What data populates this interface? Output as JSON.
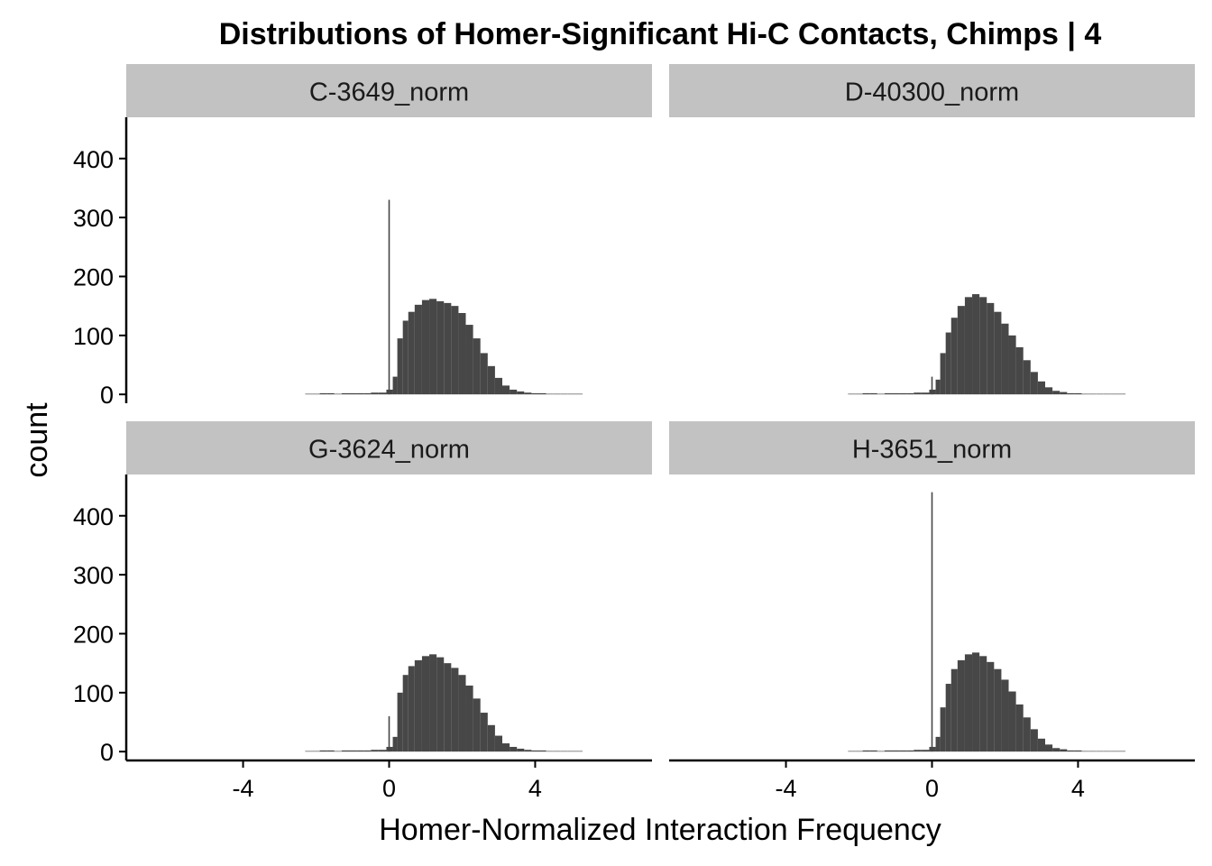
{
  "chart_data": {
    "type": "bar",
    "title": "Distributions of Homer-Significant Hi-C Contacts, Chimps | 4",
    "xlabel": "Homer-Normalized Interaction Frequency",
    "ylabel": "count",
    "xlim": [
      -7.2,
      7.2
    ],
    "ylim": [
      -15,
      470
    ],
    "x_ticks": [
      -4,
      0,
      4
    ],
    "x_tick_labels": [
      "-4",
      "0",
      "4"
    ],
    "y_ticks": [
      0,
      100,
      200,
      300,
      400
    ],
    "y_tick_labels": [
      "0",
      "100",
      "200",
      "300",
      "400"
    ],
    "grid": false,
    "bar_color": "#474747",
    "strip_color": "#c2c2c2",
    "facets": [
      {
        "label": "C-3649_norm",
        "spike": {
          "x": 0.0,
          "count": 330
        },
        "series": {
          "x": [
            -2.2,
            -2.0,
            -1.8,
            -1.6,
            -1.4,
            -1.2,
            -1.0,
            -0.8,
            -0.6,
            -0.4,
            -0.2,
            0.05,
            0.15,
            0.3,
            0.45,
            0.6,
            0.8,
            1.0,
            1.2,
            1.4,
            1.6,
            1.8,
            2.0,
            2.2,
            2.4,
            2.6,
            2.8,
            3.0,
            3.2,
            3.4,
            3.6,
            3.8,
            4.0,
            4.2,
            4.4,
            4.6,
            4.8,
            5.0,
            5.2
          ],
          "counts": [
            1,
            1,
            2,
            2,
            1,
            2,
            2,
            2,
            2,
            3,
            3,
            8,
            30,
            95,
            125,
            140,
            152,
            160,
            162,
            158,
            155,
            150,
            138,
            118,
            95,
            70,
            48,
            28,
            15,
            8,
            5,
            3,
            2,
            2,
            1,
            1,
            1,
            1,
            1
          ]
        }
      },
      {
        "label": "D-40300_norm",
        "spike": {
          "x": 0.0,
          "count": 30
        },
        "series": {
          "x": [
            -2.2,
            -2.0,
            -1.8,
            -1.6,
            -1.4,
            -1.2,
            -1.0,
            -0.8,
            -0.6,
            -0.4,
            -0.2,
            0.05,
            0.15,
            0.3,
            0.45,
            0.6,
            0.8,
            1.0,
            1.2,
            1.4,
            1.6,
            1.8,
            2.0,
            2.2,
            2.4,
            2.6,
            2.8,
            3.0,
            3.2,
            3.4,
            3.6,
            3.8,
            4.0,
            4.2,
            4.4,
            4.6,
            4.8,
            5.0,
            5.2
          ],
          "counts": [
            1,
            1,
            2,
            2,
            1,
            2,
            2,
            2,
            2,
            3,
            3,
            8,
            25,
            70,
            105,
            130,
            150,
            165,
            170,
            165,
            155,
            140,
            120,
            100,
            80,
            58,
            38,
            22,
            12,
            6,
            4,
            2,
            2,
            1,
            1,
            1,
            1,
            1,
            1
          ]
        }
      },
      {
        "label": "G-3624_norm",
        "spike": {
          "x": 0.0,
          "count": 60
        },
        "series": {
          "x": [
            -2.2,
            -2.0,
            -1.8,
            -1.6,
            -1.4,
            -1.2,
            -1.0,
            -0.8,
            -0.6,
            -0.4,
            -0.2,
            0.05,
            0.15,
            0.3,
            0.45,
            0.6,
            0.8,
            1.0,
            1.2,
            1.4,
            1.6,
            1.8,
            2.0,
            2.2,
            2.4,
            2.6,
            2.8,
            3.0,
            3.2,
            3.4,
            3.6,
            3.8,
            4.0,
            4.2,
            4.4,
            4.6,
            4.8,
            5.0,
            5.2
          ],
          "counts": [
            1,
            1,
            2,
            2,
            1,
            2,
            2,
            2,
            2,
            3,
            3,
            8,
            25,
            100,
            130,
            145,
            155,
            162,
            165,
            160,
            150,
            142,
            130,
            112,
            90,
            66,
            45,
            27,
            14,
            8,
            5,
            3,
            2,
            2,
            1,
            1,
            1,
            1,
            1
          ]
        }
      },
      {
        "label": "H-3651_norm",
        "spike": {
          "x": 0.0,
          "count": 440
        },
        "series": {
          "x": [
            -2.2,
            -2.0,
            -1.8,
            -1.6,
            -1.4,
            -1.2,
            -1.0,
            -0.8,
            -0.6,
            -0.4,
            -0.2,
            0.05,
            0.15,
            0.3,
            0.45,
            0.6,
            0.8,
            1.0,
            1.2,
            1.4,
            1.6,
            1.8,
            2.0,
            2.2,
            2.4,
            2.6,
            2.8,
            3.0,
            3.2,
            3.4,
            3.6,
            3.8,
            4.0,
            4.2,
            4.4,
            4.6,
            4.8,
            5.0,
            5.2
          ],
          "counts": [
            1,
            1,
            2,
            2,
            1,
            2,
            2,
            2,
            2,
            3,
            3,
            8,
            25,
            75,
            115,
            140,
            155,
            165,
            168,
            162,
            152,
            140,
            122,
            102,
            80,
            58,
            38,
            22,
            12,
            6,
            4,
            2,
            2,
            1,
            1,
            1,
            1,
            1,
            1
          ]
        }
      }
    ]
  }
}
